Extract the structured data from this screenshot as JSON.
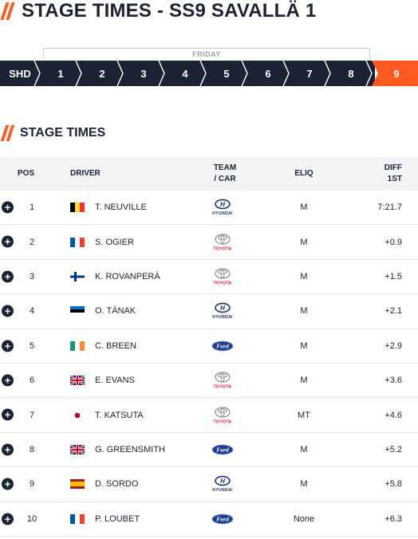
{
  "header": {
    "title": "STAGE TIMES - SS9 SAVALLÄ 1"
  },
  "stage_nav": {
    "day_label": "FRIDAY",
    "stages": [
      {
        "label": "SHD",
        "active": false
      },
      {
        "label": "1",
        "active": false
      },
      {
        "label": "2",
        "active": false
      },
      {
        "label": "3",
        "active": false
      },
      {
        "label": "4",
        "active": false
      },
      {
        "label": "5",
        "active": false
      },
      {
        "label": "6",
        "active": false
      },
      {
        "label": "7",
        "active": false
      },
      {
        "label": "8",
        "active": false
      },
      {
        "label": "9",
        "active": true
      }
    ]
  },
  "section": {
    "title": "STAGE TIMES"
  },
  "table": {
    "headers": {
      "pos": "POS",
      "driver": "DRIVER",
      "team_line1": "TEAM",
      "team_line2": "/ CAR",
      "eliq": "ELIQ",
      "diff_line1": "DIFF",
      "diff_line2": "1ST"
    },
    "rows": [
      {
        "pos": "1",
        "flag": "belgium-flag",
        "driver": "T. NEUVILLE",
        "team": "hyundai-logo",
        "team_text": "HYUNDAI",
        "eliq": "M",
        "diff": "7:21.7"
      },
      {
        "pos": "2",
        "flag": "france-flag",
        "driver": "S. OGIER",
        "team": "toyota-logo",
        "team_text": "TOYOTA",
        "eliq": "M",
        "diff": "+0.9"
      },
      {
        "pos": "3",
        "flag": "finland-flag",
        "driver": "K. ROVANPERÄ",
        "team": "toyota-logo",
        "team_text": "TOYOTA",
        "eliq": "M",
        "diff": "+1.5"
      },
      {
        "pos": "4",
        "flag": "estonia-flag",
        "driver": "O. TÄNAK",
        "team": "hyundai-logo",
        "team_text": "HYUNDAI",
        "eliq": "M",
        "diff": "+2.1"
      },
      {
        "pos": "5",
        "flag": "ireland-flag",
        "driver": "C. BREEN",
        "team": "ford-logo",
        "team_text": "Ford",
        "eliq": "M",
        "diff": "+2.9"
      },
      {
        "pos": "6",
        "flag": "uk-flag",
        "driver": "E. EVANS",
        "team": "toyota-logo",
        "team_text": "TOYOTA",
        "eliq": "M",
        "diff": "+3.6"
      },
      {
        "pos": "7",
        "flag": "japan-flag",
        "driver": "T. KATSUTA",
        "team": "toyota-logo",
        "team_text": "TOYOTA",
        "eliq": "MT",
        "diff": "+4.6"
      },
      {
        "pos": "8",
        "flag": "uk-flag",
        "driver": "G. GREENSMITH",
        "team": "ford-logo",
        "team_text": "Ford",
        "eliq": "M",
        "diff": "+5.2"
      },
      {
        "pos": "9",
        "flag": "spain-flag",
        "driver": "D. SORDO",
        "team": "hyundai-logo",
        "team_text": "HYUNDAI",
        "eliq": "M",
        "diff": "+5.8"
      },
      {
        "pos": "10",
        "flag": "france-flag",
        "driver": "P. LOUBET",
        "team": "ford-logo",
        "team_text": "Ford",
        "eliq": "None",
        "diff": "+6.3"
      }
    ]
  },
  "colors": {
    "accent": "#ff5a1f",
    "navy": "#1b2233",
    "header_bg": "#f3f4f6",
    "divider": "#e4e6ea"
  }
}
